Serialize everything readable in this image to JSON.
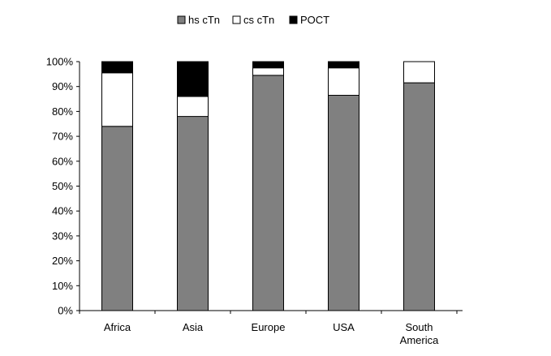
{
  "chart_data": {
    "type": "bar",
    "stacked": true,
    "categories": [
      [
        "Africa"
      ],
      [
        "Asia"
      ],
      [
        "Europe"
      ],
      [
        "USA"
      ],
      [
        "South",
        "America"
      ]
    ],
    "series": [
      {
        "name": "hs cTn",
        "color": "#808080",
        "values": [
          74,
          78,
          94.5,
          86.5,
          91.5
        ]
      },
      {
        "name": "cs cTn",
        "color": "#ffffff",
        "values": [
          21.5,
          8,
          3,
          11,
          8.5
        ]
      },
      {
        "name": "POCT",
        "color": "#000000",
        "values": [
          4.5,
          14,
          2.5,
          2.5,
          0
        ]
      }
    ],
    "yticks": [
      "0%",
      "10%",
      "20%",
      "30%",
      "40%",
      "50%",
      "60%",
      "70%",
      "80%",
      "90%",
      "100%"
    ],
    "ylim": [
      0,
      100
    ],
    "legend_position": "top-center",
    "grid": false,
    "title": "",
    "xlabel": "",
    "ylabel": ""
  }
}
